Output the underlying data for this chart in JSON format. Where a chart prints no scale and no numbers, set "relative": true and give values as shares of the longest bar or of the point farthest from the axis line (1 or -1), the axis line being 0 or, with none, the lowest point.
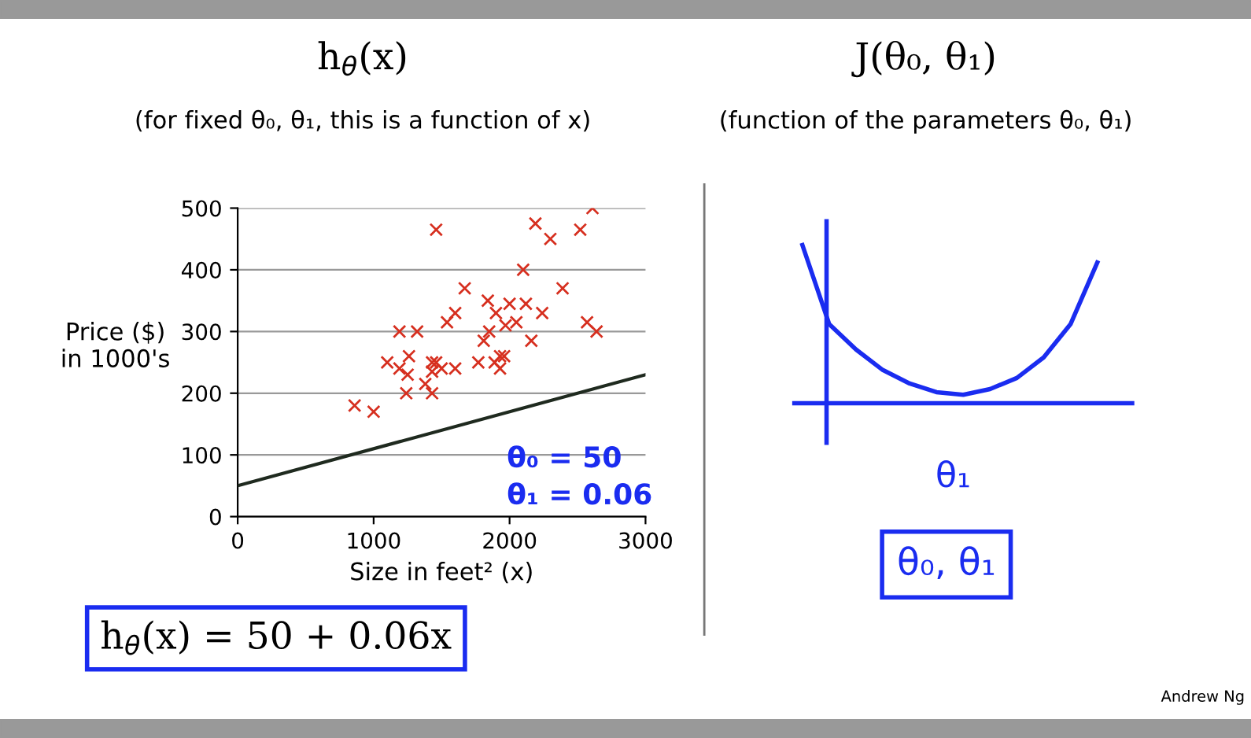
{
  "chart_data": [
    {
      "type": "scatter",
      "title": "h$_{θ}$(x)",
      "subtitle": "(for fixed θ₀, θ₁, this is a function of x)",
      "xlabel": "Size in feet² (x)",
      "ylabel": "Price ($)\nin 1000's",
      "xlim": [
        0,
        3000
      ],
      "xticks": [
        0,
        1000,
        2000,
        3000
      ],
      "ylim": [
        0,
        500
      ],
      "yticks": [
        0,
        100,
        200,
        300,
        400,
        500
      ],
      "grid": "y",
      "series": [
        {
          "type": "scatter",
          "marker": "cross",
          "color": "#d62f1f",
          "x": [
            860,
            1000,
            1100,
            1190,
            1190,
            1250,
            1260,
            1240,
            1320,
            1380,
            1430,
            1430,
            1460,
            1430,
            1460,
            1500,
            1540,
            1600,
            1600,
            1670,
            1770,
            1810,
            1840,
            1850,
            1890,
            1900,
            1930,
            1930,
            1970,
            1960,
            2000,
            2050,
            2100,
            2120,
            2160,
            2190,
            2240,
            2300,
            2390,
            2520,
            2570,
            2610,
            2640
          ],
          "values": [
            180,
            170,
            250,
            300,
            240,
            230,
            260,
            200,
            300,
            215,
            235,
            200,
            465,
            250,
            250,
            240,
            315,
            330,
            240,
            370,
            250,
            285,
            350,
            300,
            250,
            330,
            260,
            240,
            310,
            260,
            345,
            315,
            400,
            345,
            285,
            475,
            330,
            450,
            370,
            465,
            315,
            500,
            300
          ]
        },
        {
          "type": "line",
          "line_style": "solid",
          "color": "#1f2a1f",
          "x": [
            0,
            3000
          ],
          "values": [
            50,
            230
          ]
        }
      ],
      "annotations": [
        "θ₀ = 50",
        "θ₁ = 0.06",
        "h$_{θ}$(x) = 50 + 0.06x"
      ]
    },
    {
      "type": "line",
      "relative": true,
      "title": "J(θ₀, θ₁)",
      "subtitle": "(function of the parameters θ₀, θ₁)",
      "xlabel": "θ₁",
      "categories": [
        null,
        null,
        null,
        null,
        null,
        null,
        null,
        null,
        null,
        null,
        null,
        null
      ],
      "series": [
        {
          "color": "#1a2cf0",
          "values": [
            1,
            0.5,
            0.34,
            0.21,
            0.125,
            0.07,
            0.054,
            0.09,
            0.16,
            0.29,
            0.5,
            0.89
          ]
        }
      ],
      "annotations": [
        "θ₀, θ₁",
        "Andrew Ng"
      ]
    }
  ]
}
